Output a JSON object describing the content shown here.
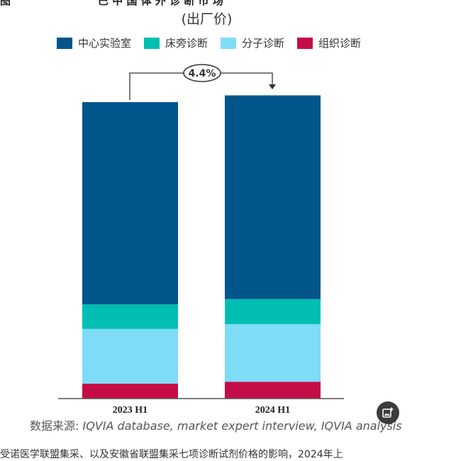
{
  "top_fragment_left": "图",
  "top_fragment_mid": "巴 中 国 体 外 诊 断 市 场",
  "bottom_fragment": "受诺医学联盟集采、以及安徽省联盟集采七项诊断试剂价格的影响，2024年上",
  "chart_data": {
    "type": "bar",
    "stacked": true,
    "title": "",
    "subtitle": "(出厂价)",
    "categories": [
      "2023 H1",
      "2024 H1"
    ],
    "series": [
      {
        "name": "中心实验室",
        "color": "#00558a",
        "values": [
          72,
          72.5
        ]
      },
      {
        "name": "床旁诊断",
        "color": "#00bfb2",
        "values": [
          8.7,
          8.9
        ]
      },
      {
        "name": "分子诊断",
        "color": "#7fdcf7",
        "values": [
          19.5,
          20.5
        ]
      },
      {
        "name": "组织诊断",
        "color": "#c60c46",
        "values": [
          5.3,
          6.0
        ]
      }
    ],
    "annotation": {
      "label": "4.4%"
    },
    "ylim": [
      0,
      106
    ],
    "grid": false,
    "legend_position": "top"
  },
  "source": {
    "label": "数据来源:",
    "text": " IQVIA database, market expert interview, IQVIA analysis"
  },
  "fab_icon": "image-plus-icon"
}
